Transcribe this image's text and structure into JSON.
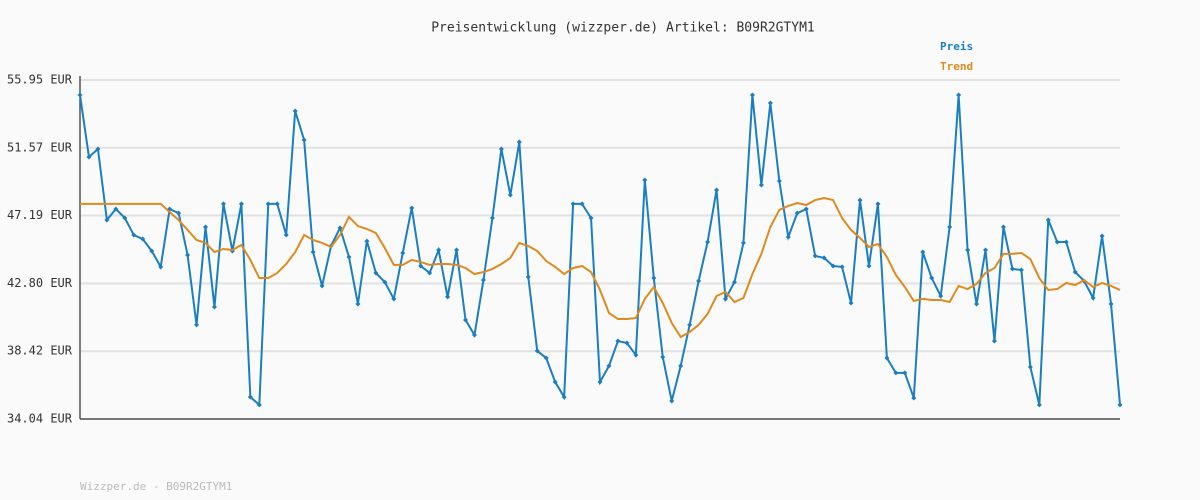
{
  "chart_data": {
    "type": "line",
    "title": "Preisentwicklung (wizzper.de) Artikel: B09R2GTYM1",
    "footer": "Wizzper.de - B09R2GTYM1",
    "categories": [
      null,
      null,
      null,
      null,
      null,
      null,
      null,
      null,
      null,
      null,
      null,
      null,
      null,
      null,
      null,
      null,
      null,
      null,
      null,
      null,
      null,
      null,
      null,
      null,
      null,
      null,
      null,
      null,
      null,
      null,
      null,
      null,
      null,
      null,
      null,
      null,
      null,
      null,
      null,
      null,
      null,
      null,
      null,
      null,
      null,
      null,
      null,
      null,
      null,
      null,
      null,
      null,
      null,
      null,
      null,
      null,
      null,
      null,
      null,
      null,
      null,
      null,
      null,
      null,
      null,
      null,
      null,
      null,
      null,
      null,
      null,
      null,
      null,
      null,
      null,
      null,
      null,
      null,
      null,
      null,
      null,
      null,
      null,
      null,
      null,
      null,
      null,
      null,
      null,
      null,
      null,
      null,
      null,
      null,
      null,
      null,
      null,
      null,
      null,
      null,
      null,
      null,
      null,
      null,
      null,
      null,
      null,
      null,
      null,
      null,
      null,
      null,
      null,
      null,
      null,
      null,
      null
    ],
    "series": [
      {
        "name": "Preis",
        "color": "#1a7fc1",
        "markers": true,
        "values": [
          54.98,
          50.97,
          51.49,
          46.9,
          47.61,
          47.03,
          45.93,
          45.67,
          44.9,
          43.87,
          47.61,
          47.35,
          44.64,
          40.12,
          46.45,
          41.28,
          47.94,
          44.9,
          47.94,
          35.46,
          34.95,
          47.94,
          47.94,
          45.93,
          53.95,
          52.07,
          44.83,
          42.64,
          45.22,
          46.39,
          44.51,
          41.47,
          45.54,
          43.48,
          42.89,
          41.8,
          44.77,
          47.68,
          43.93,
          43.48,
          44.96,
          41.93,
          44.96,
          40.44,
          39.47,
          43.02,
          47.03,
          51.49,
          48.52,
          51.94,
          43.22,
          38.44,
          37.98,
          36.43,
          35.46,
          47.94,
          47.94,
          47.03,
          36.43,
          37.47,
          39.08,
          38.95,
          38.18,
          49.49,
          43.15,
          38.05,
          35.2,
          37.47,
          40.12,
          42.96,
          45.48,
          48.84,
          41.8,
          42.89,
          45.42,
          54.98,
          49.16,
          54.46,
          49.42,
          45.8,
          47.35,
          47.61,
          44.58,
          44.45,
          43.93,
          43.87,
          41.54,
          48.19,
          43.93,
          47.94,
          37.98,
          37.02,
          37.02,
          35.4,
          44.83,
          43.15,
          41.99,
          46.45,
          54.98,
          44.96,
          41.47,
          44.96,
          39.08,
          46.45,
          43.74,
          43.67,
          37.4,
          34.95,
          46.9,
          45.48,
          45.48,
          43.54,
          42.96,
          41.86,
          45.87,
          41.47,
          34.95
        ]
      },
      {
        "name": "Trend",
        "color": "#e08a1e",
        "markers": false,
        "values": [
          47.94,
          47.94,
          47.94,
          47.94,
          47.94,
          47.94,
          47.94,
          47.94,
          47.94,
          47.94,
          47.42,
          46.9,
          46.26,
          45.61,
          45.42,
          44.83,
          45.03,
          44.96,
          45.29,
          44.32,
          43.15,
          43.15,
          43.48,
          44.06,
          44.83,
          45.93,
          45.61,
          45.42,
          45.16,
          45.93,
          47.1,
          46.51,
          46.32,
          46.06,
          45.09,
          44.0,
          44.0,
          44.32,
          44.19,
          44.0,
          44.06,
          44.06,
          44.0,
          43.8,
          43.41,
          43.54,
          43.74,
          44.06,
          44.45,
          45.42,
          45.22,
          44.9,
          44.25,
          43.87,
          43.41,
          43.8,
          43.93,
          43.54,
          42.38,
          40.89,
          40.5,
          40.5,
          40.57,
          41.8,
          42.57,
          41.54,
          40.25,
          39.34,
          39.66,
          40.12,
          40.83,
          41.99,
          42.25,
          41.6,
          41.86,
          43.41,
          44.71,
          46.45,
          47.55,
          47.81,
          48.0,
          47.87,
          48.19,
          48.32,
          48.19,
          47.03,
          46.26,
          45.74,
          45.16,
          45.35,
          44.51,
          43.35,
          42.57,
          41.67,
          41.8,
          41.73,
          41.73,
          41.6,
          42.64,
          42.44,
          42.77,
          43.48,
          43.8,
          44.71,
          44.71,
          44.77,
          44.38,
          43.15,
          42.38,
          42.44,
          42.83,
          42.7,
          43.02,
          42.57,
          42.83,
          42.64,
          42.38
        ]
      }
    ],
    "ylim": [
      34.04,
      55.95
    ],
    "yticks": [
      {
        "value": 34.04,
        "label": "34.04 EUR"
      },
      {
        "value": 38.42,
        "label": "38.42 EUR"
      },
      {
        "value": 42.8,
        "label": "42.80 EUR"
      },
      {
        "value": 47.19,
        "label": "47.19 EUR"
      },
      {
        "value": 51.57,
        "label": "51.57 EUR"
      },
      {
        "value": 55.95,
        "label": "55.95 EUR"
      }
    ],
    "grid": true,
    "legend": "top-right"
  }
}
